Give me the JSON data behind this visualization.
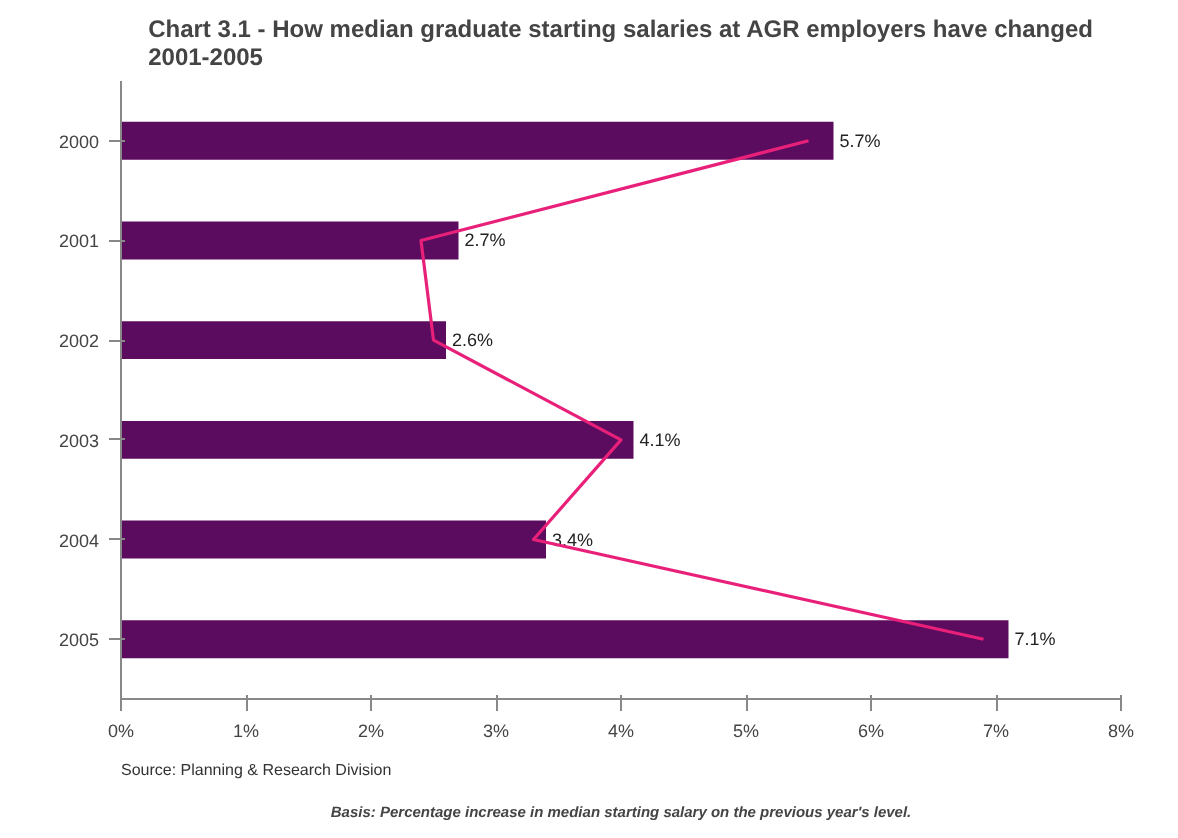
{
  "chart_data": {
    "type": "bar",
    "orientation": "horizontal",
    "title": "Chart 3.1 - How median graduate starting salaries at AGR employers have changed 2001-2005",
    "categories": [
      "2000",
      "2001",
      "2002",
      "2003",
      "2004",
      "2005"
    ],
    "series": [
      {
        "color": "#5c0c5e",
        "values": [
          5.7,
          2.7,
          2.6,
          4.1,
          3.4,
          7.1
        ],
        "value_labels": [
          "5.7%",
          "2.7%",
          "2.6%",
          "4.1%",
          "3.4%",
          "7.1%"
        ]
      },
      {
        "type": "line",
        "color": "#e8207a",
        "values": [
          5.5,
          2.4,
          2.5,
          4.0,
          3.3,
          6.9
        ]
      }
    ],
    "xlim": [
      0,
      8
    ],
    "xticks": [
      {
        "value": 0,
        "label": "0%"
      },
      {
        "value": 1,
        "label": "1%"
      },
      {
        "value": 2,
        "label": "2%"
      },
      {
        "value": 3,
        "label": "3%"
      },
      {
        "value": 4,
        "label": "4%"
      },
      {
        "value": 5,
        "label": "5%"
      },
      {
        "value": 6,
        "label": "6%"
      },
      {
        "value": 7,
        "label": "7%"
      },
      {
        "value": 8,
        "label": "8%"
      }
    ],
    "grid": false,
    "annotations": [
      "Basis: Percentage increase in median starting salary on the previous year's level.",
      "Source: Planning & Research Division"
    ]
  }
}
